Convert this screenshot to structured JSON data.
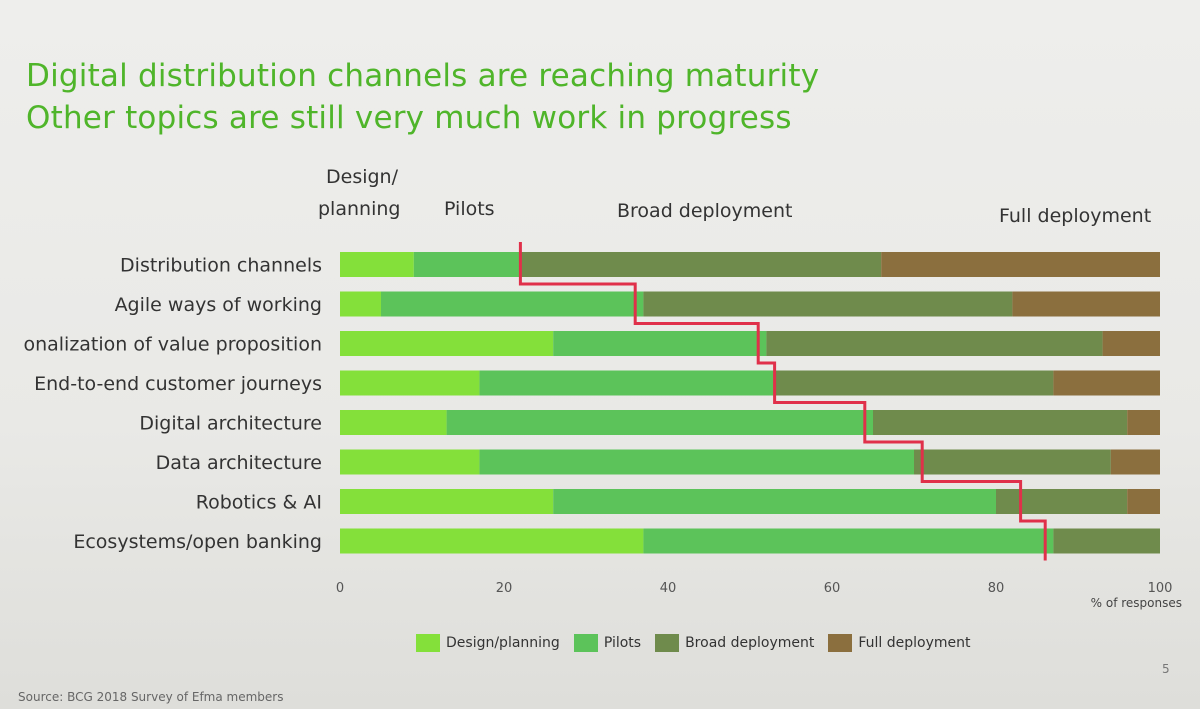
{
  "title_line1": "Digital distribution channels are reaching maturity",
  "title_line2": "Other topics are still very much work in progress",
  "phase_headers": {
    "design_line1": "Design/",
    "design_line2": "planning",
    "pilots": "Pilots",
    "broad": "Broad deployment",
    "full": "Full deployment"
  },
  "source": "Source:  BCG 2018 Survey of Efma members",
  "page_number": "5",
  "colors": {
    "design": "#84e03a",
    "pilots": "#5cc35a",
    "broad": "#6f8b4c",
    "full": "#8b6f3e",
    "frontier": "#e0304a",
    "title": "#4fb52a"
  },
  "chart_data": {
    "type": "bar",
    "orientation": "horizontal",
    "stacked": true,
    "categories": [
      "Distribution channels",
      "Agile ways of working",
      "onalization of value proposition",
      "End-to-end customer journeys",
      "Digital architecture",
      "Data architecture",
      "Robotics & AI",
      "Ecosystems/open banking"
    ],
    "series": [
      {
        "name": "Design/planning",
        "values": [
          9,
          5,
          26,
          17,
          13,
          17,
          26,
          37
        ]
      },
      {
        "name": "Pilots",
        "values": [
          13,
          32,
          26,
          36,
          52,
          53,
          54,
          50
        ]
      },
      {
        "name": "Broad deployment",
        "values": [
          44,
          45,
          41,
          34,
          31,
          24,
          16,
          13
        ]
      },
      {
        "name": "Full deployment",
        "values": [
          34,
          18,
          7,
          13,
          4,
          6,
          4,
          0
        ]
      }
    ],
    "frontier_values": [
      22,
      36,
      51,
      53,
      64,
      71,
      83,
      86
    ],
    "x_ticks": [
      "0",
      "20",
      "40",
      "60",
      "80",
      "100"
    ],
    "xlim": [
      0,
      100
    ],
    "xlabel": "% of responses",
    "legend_position": "bottom",
    "grid": false
  }
}
